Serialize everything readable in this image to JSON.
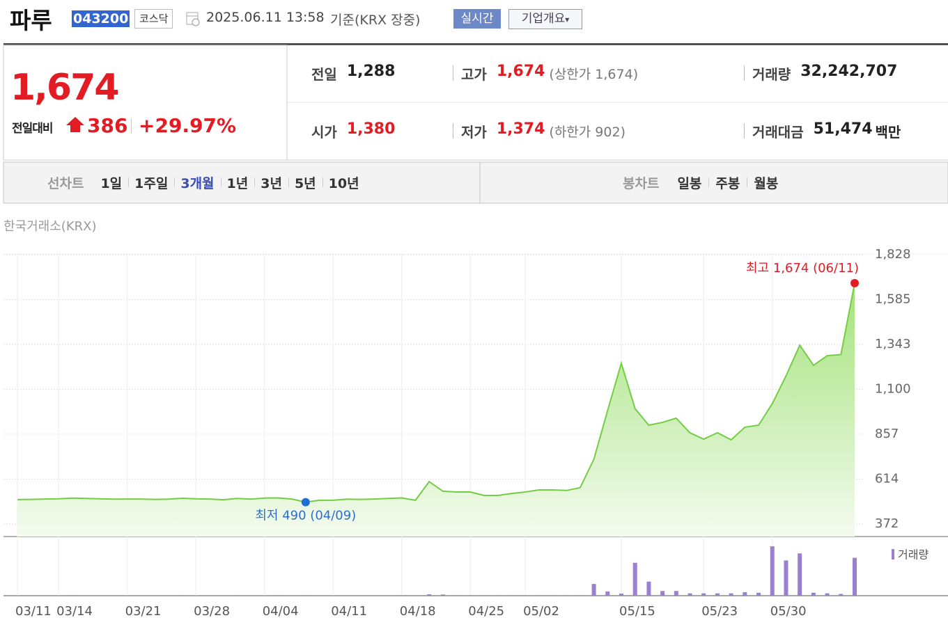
{
  "header": {
    "name": "파루",
    "code": "043200",
    "market": "코스닥",
    "timestamp": "2025.06.11 13:58",
    "basis": "기준(KRX 장중)",
    "buttons": [
      "실시간",
      "기업개요"
    ]
  },
  "summary": {
    "price": "1,674",
    "change_label": "전일대비",
    "change": "386",
    "change_rate": "+29.97%",
    "stats": [
      [
        {
          "label": "전일",
          "value": "1,288",
          "color": "#222"
        },
        {
          "label": "고가",
          "value": "1,674",
          "note": "(상한가 1,674)",
          "color": "#e31b23"
        },
        {
          "label": "거래량",
          "value": "32,242,707",
          "color": "#222"
        }
      ],
      [
        {
          "label": "시가",
          "value": "1,380",
          "color": "#e31b23"
        },
        {
          "label": "저가",
          "value": "1,374",
          "note": "(하한가 902)",
          "color": "#e31b23"
        },
        {
          "label": "거래대금",
          "value": "51,474",
          "unit": "백만",
          "color": "#222"
        }
      ]
    ]
  },
  "tabs": {
    "line_label": "선차트",
    "periods": [
      "1일",
      "1주일",
      "3개월",
      "1년",
      "3년",
      "5년",
      "10년"
    ],
    "active": 2,
    "candle_label": "봉차트",
    "candles": [
      "일봉",
      "주봉",
      "월봉"
    ]
  },
  "chart_data": {
    "type": "line",
    "source": "한국거래소(KRX)",
    "categories": [
      "03/11",
      null,
      null,
      "03/14",
      null,
      null,
      null,
      null,
      "03/21",
      null,
      null,
      null,
      null,
      "03/28",
      null,
      null,
      null,
      null,
      "04/04",
      null,
      null,
      null,
      null,
      "04/11",
      null,
      null,
      null,
      null,
      "04/18",
      null,
      null,
      null,
      null,
      "04/25",
      null,
      null,
      null,
      "05/02",
      null,
      null,
      null,
      null,
      null,
      null,
      "05/15",
      null,
      null,
      null,
      null,
      null,
      "05/23",
      null,
      null,
      null,
      null,
      "05/30",
      null,
      null,
      null,
      null,
      null,
      null
    ],
    "values": [
      504,
      505,
      507,
      508,
      512,
      510,
      508,
      506,
      507,
      507,
      505,
      506,
      511,
      508,
      507,
      503,
      510,
      506,
      512,
      513,
      507,
      490,
      500,
      500,
      506,
      505,
      507,
      510,
      513,
      500,
      601,
      549,
      545,
      545,
      526,
      526,
      537,
      545,
      556,
      556,
      553,
      568,
      722,
      985,
      1241,
      996,
      906,
      921,
      944,
      865,
      831,
      865,
      827,
      895,
      906,
      1023,
      1173,
      1339,
      1230,
      1282,
      1288,
      1674
    ],
    "color": "#74cc44",
    "ylim": [
      304,
      1828
    ],
    "yticks": [
      372,
      614,
      857,
      {
        "value": 1100,
        "label": "1,100"
      },
      {
        "value": 1343,
        "label": "1,343"
      },
      {
        "value": 1585,
        "label": "1,585"
      },
      {
        "value": 1828,
        "label": "1,828"
      }
    ],
    "grid": true,
    "annotations": {
      "high": "최고 1,674 (06/11)",
      "low": "최저 490 (04/09)"
    },
    "high_index": 61,
    "low_index": 21,
    "volume": {
      "name": "거래량",
      "color": "#9a7fd2",
      "ylim": [
        0,
        48000000
      ],
      "values": [
        300000,
        300000,
        250000,
        300000,
        350000,
        300000,
        250000,
        300000,
        300000,
        250000,
        300000,
        300000,
        350000,
        300000,
        300000,
        300000,
        350000,
        300000,
        300000,
        350000,
        300000,
        400000,
        300000,
        300000,
        300000,
        250000,
        300000,
        300000,
        350000,
        300000,
        1200000,
        1000000,
        400000,
        400000,
        400000,
        400000,
        400000,
        400000,
        400000,
        400000,
        400000,
        400000,
        10000000,
        3600000,
        1800000,
        28000000,
        12000000,
        4000000,
        4000000,
        2000000,
        2000000,
        2000000,
        2000000,
        3000000,
        2500000,
        42000000,
        30000000,
        36000000,
        2500000,
        2000000,
        1500000,
        32242707
      ]
    }
  }
}
